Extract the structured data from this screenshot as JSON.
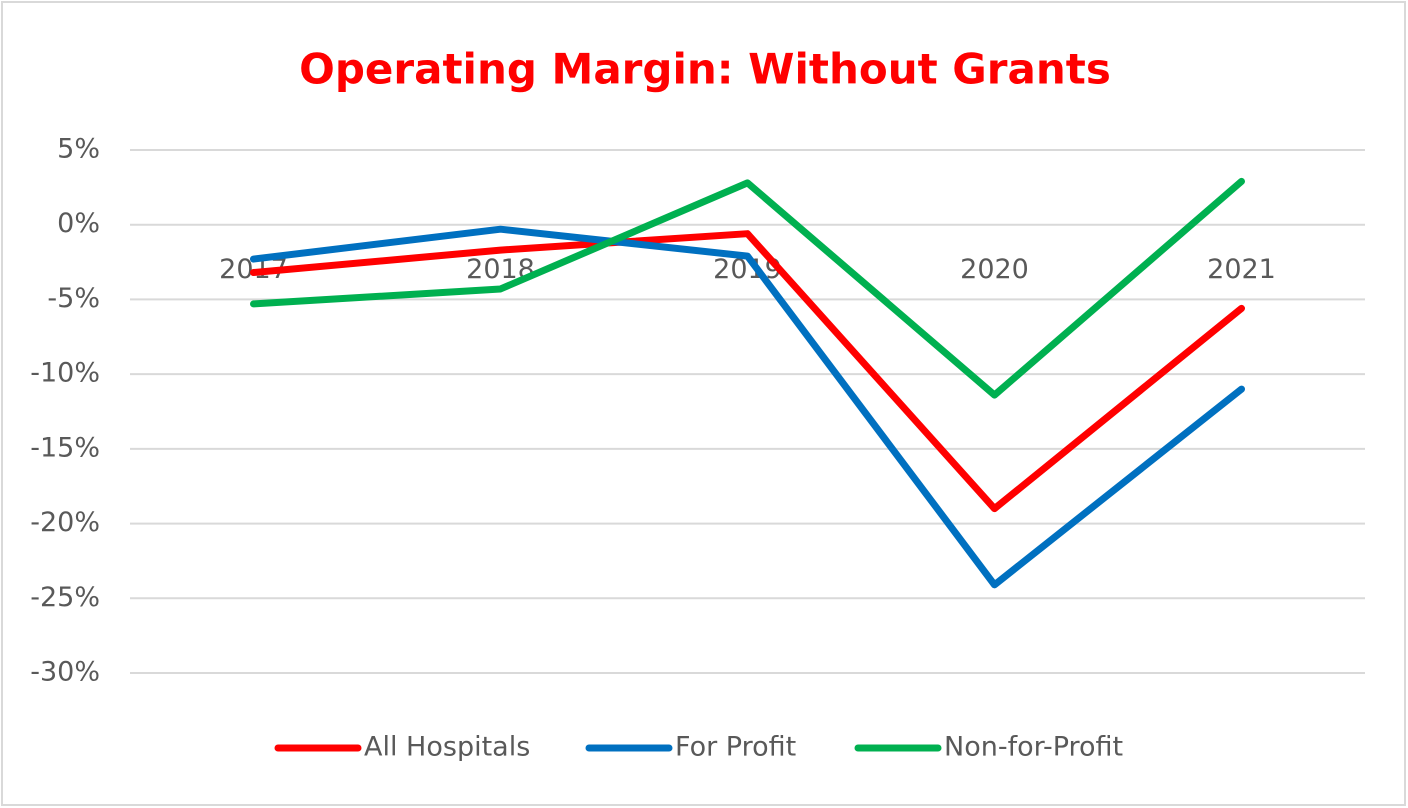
{
  "chart_data": {
    "type": "line",
    "title": "Operating Margin: Without Grants",
    "categories": [
      "2017",
      "2018",
      "2019",
      "2020",
      "2021"
    ],
    "series": [
      {
        "name": "All Hospitals",
        "color": "#ff0000",
        "values": [
          -3.2,
          -1.7,
          -0.6,
          -19.0,
          -5.6
        ]
      },
      {
        "name": "For Profit",
        "color": "#0070c0",
        "values": [
          -2.3,
          -0.3,
          -2.1,
          -24.1,
          -11.0
        ]
      },
      {
        "name": "Non-for-Profit",
        "color": "#00b050",
        "values": [
          -5.3,
          -4.3,
          2.8,
          -11.4,
          2.9
        ]
      }
    ],
    "ylim": [
      -30,
      5
    ],
    "yticks": [
      {
        "value": 5,
        "label": "5%"
      },
      {
        "value": 0,
        "label": "0%"
      },
      {
        "value": -5,
        "label": "-5%"
      },
      {
        "value": -10,
        "label": "-10%"
      },
      {
        "value": -15,
        "label": "-15%"
      },
      {
        "value": -20,
        "label": "-20%"
      },
      {
        "value": -25,
        "label": "-25%"
      },
      {
        "value": -30,
        "label": "-30%"
      }
    ],
    "grid": true,
    "legend": "bottom"
  }
}
